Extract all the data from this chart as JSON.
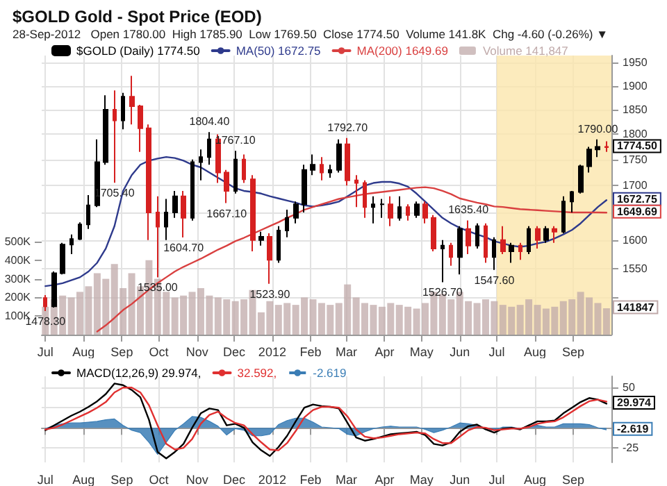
{
  "chart_data": [
    {
      "type": "candlestick",
      "title": "$GOLD Gold - Spot Price (EOD)",
      "subtitle": "28-Sep-2012   Open 1780.00  High 1785.90  Low 1769.50  Close 1774.50  Volume 141.8K  Chg -4.60 (-0.26%) ▼",
      "x": [
        "2011-07-01",
        "2011-07-08",
        "2011-07-15",
        "2011-07-22",
        "2011-07-29",
        "2011-08-05",
        "2011-08-12",
        "2011-08-19",
        "2011-08-26",
        "2011-09-02",
        "2011-09-09",
        "2011-09-16",
        "2011-09-23",
        "2011-09-30",
        "2011-10-07",
        "2011-10-14",
        "2011-10-21",
        "2011-10-28",
        "2011-11-04",
        "2011-11-11",
        "2011-11-18",
        "2011-11-25",
        "2011-12-02",
        "2011-12-09",
        "2011-12-16",
        "2011-12-23",
        "2011-12-30",
        "2012-01-06",
        "2012-01-13",
        "2012-01-20",
        "2012-01-27",
        "2012-02-03",
        "2012-02-10",
        "2012-02-17",
        "2012-02-24",
        "2012-03-02",
        "2012-03-09",
        "2012-03-16",
        "2012-03-23",
        "2012-03-30",
        "2012-04-06",
        "2012-04-13",
        "2012-04-20",
        "2012-04-27",
        "2012-05-04",
        "2012-05-11",
        "2012-05-18",
        "2012-05-25",
        "2012-06-01",
        "2012-06-08",
        "2012-06-15",
        "2012-06-22",
        "2012-06-29",
        "2012-07-06",
        "2012-07-13",
        "2012-07-20",
        "2012-07-27",
        "2012-08-03",
        "2012-08-10",
        "2012-08-17",
        "2012-08-24",
        "2012-08-31",
        "2012-09-07",
        "2012-09-14",
        "2012-09-21",
        "2012-09-28"
      ],
      "xlim": [
        "2011-06-28",
        "2012-10-02"
      ],
      "xticks": [
        {
          "value": "2011-07-01",
          "label": "Jul"
        },
        {
          "value": "2011-08-01",
          "label": "Aug"
        },
        {
          "value": "2011-09-01",
          "label": "Sep"
        },
        {
          "value": "2011-10-01",
          "label": "Oct"
        },
        {
          "value": "2011-11-01",
          "label": "Nov"
        },
        {
          "value": "2011-12-01",
          "label": "Dec"
        },
        {
          "value": "2012-01-01",
          "label": "2012"
        },
        {
          "value": "2012-02-01",
          "label": "Feb"
        },
        {
          "value": "2012-03-01",
          "label": "Mar"
        },
        {
          "value": "2012-04-01",
          "label": "Apr"
        },
        {
          "value": "2012-05-01",
          "label": "May"
        },
        {
          "value": "2012-06-01",
          "label": "Jun"
        },
        {
          "value": "2012-07-01",
          "label": "Jul"
        },
        {
          "value": "2012-08-01",
          "label": "Aug"
        },
        {
          "value": "2012-09-01",
          "label": "Sep"
        }
      ],
      "ylim": [
        1440,
        1965
      ],
      "yticks": [
        {
          "value": 1500,
          "label": null
        },
        1550,
        1600,
        {
          "value": 1650,
          "label": null
        },
        1700,
        1750,
        1800,
        1850,
        1900,
        1950
      ],
      "log": "y",
      "y2lim": [
        0,
        1500000
      ],
      "y2ticks": [
        {
          "value": 100000,
          "label": "100K"
        },
        {
          "value": 200000,
          "label": "200K"
        },
        {
          "value": 300000,
          "label": "300K"
        },
        {
          "value": 400000,
          "label": "400K"
        },
        {
          "value": 500000,
          "label": "500K"
        }
      ],
      "grid": true,
      "legend": "top left",
      "bands": [
        {
          "axis": "x",
          "from": "2012-07-01",
          "to": "2012-10-02",
          "color": "#fbe6ac"
        }
      ],
      "series": [
        {
          "name": "$GOLD (Daily) 1774.50",
          "color": "#000000",
          "colors": [
            "#d62020",
            "#000000",
            "#000000",
            "#000000",
            "#000000",
            "#000000",
            "#000000",
            "#000000",
            "#d62020",
            "#000000",
            "#d62020",
            "#d62020",
            "#d62020",
            "#d62020",
            "#000000",
            "#000000",
            "#d62020",
            "#000000",
            "#000000",
            "#000000",
            "#d62020",
            "#d62020",
            "#000000",
            "#d62020",
            "#d62020",
            "#000000",
            "#d62020",
            "#000000",
            "#000000",
            "#000000",
            "#000000",
            "#000000",
            "#d62020",
            "#000000",
            "#000000",
            "#d62020",
            "#d62020",
            "#d62020",
            "#000000",
            "#000000",
            "#d62020",
            "#000000",
            "#d62020",
            "#000000",
            "#d62020",
            "#d62020",
            "#000000",
            "#d62020",
            "#000000",
            "#d62020",
            "#000000",
            "#d62020",
            "#000000",
            "#d62020",
            "#000000",
            "#d62020",
            "#000000",
            "#d62020",
            "#000000",
            "#d62020",
            "#000000",
            "#000000",
            "#000000",
            "#000000",
            "#000000",
            "#d62020"
          ],
          "ohlc": [
            [
              1500,
              1505,
              1478.3,
              1486
            ],
            [
              1486,
              1545,
              1484,
              1542
            ],
            [
              1542,
              1595,
              1540,
              1592
            ],
            [
              1592,
              1610,
              1575,
              1602
            ],
            [
              1602,
              1632,
              1600,
              1628
            ],
            [
              1628,
              1682,
              1620,
              1663
            ],
            [
              1663,
              1790,
              1660,
              1745
            ],
            [
              1745,
              1880,
              1740,
              1850
            ],
            [
              1850,
              1890,
              1705.4,
              1828
            ],
            [
              1828,
              1885,
              1810,
              1877
            ],
            [
              1877,
              1921,
              1820,
              1857
            ],
            [
              1857,
              1860,
              1765,
              1812
            ],
            [
              1812,
              1820,
              1600,
              1650
            ],
            [
              1650,
              1680,
              1535,
              1624
            ],
            [
              1624,
              1675,
              1600,
              1650
            ],
            [
              1650,
              1690,
              1640,
              1680
            ],
            [
              1680,
              1690,
              1604.7,
              1640
            ],
            [
              1640,
              1750,
              1635,
              1745
            ],
            [
              1745,
              1770,
              1710,
              1755
            ],
            [
              1755,
              1804.4,
              1740,
              1790
            ],
            [
              1790,
              1800,
              1705,
              1725
            ],
            [
              1725,
              1730,
              1667.1,
              1690
            ],
            [
              1690,
              1767.1,
              1685,
              1750
            ],
            [
              1750,
              1760,
              1705,
              1712
            ],
            [
              1712,
              1720,
              1580,
              1600
            ],
            [
              1600,
              1615,
              1590,
              1606
            ],
            [
              1606,
              1612,
              1523.9,
              1565
            ],
            [
              1565,
              1625,
              1560,
              1617
            ],
            [
              1617,
              1655,
              1605,
              1640
            ],
            [
              1640,
              1670,
              1630,
              1665
            ],
            [
              1665,
              1740,
              1650,
              1730
            ],
            [
              1730,
              1760,
              1720,
              1740
            ],
            [
              1740,
              1755,
              1710,
              1725
            ],
            [
              1725,
              1740,
              1715,
              1730
            ],
            [
              1730,
              1790,
              1725,
              1780
            ],
            [
              1780,
              1792.7,
              1700,
              1710
            ],
            [
              1710,
              1720,
              1660,
              1705
            ],
            [
              1705,
              1710,
              1640,
              1660
            ],
            [
              1660,
              1680,
              1630,
              1665
            ],
            [
              1665,
              1675,
              1640,
              1665
            ],
            [
              1665,
              1680,
              1625,
              1640
            ],
            [
              1640,
              1680,
              1635,
              1660
            ],
            [
              1660,
              1665,
              1635,
              1645
            ],
            [
              1645,
              1670,
              1640,
              1665
            ],
            [
              1665,
              1670,
              1630,
              1640
            ],
            [
              1640,
              1645,
              1580,
              1585
            ],
            [
              1585,
              1600,
              1526.7,
              1590
            ],
            [
              1590,
              1595,
              1555,
              1570
            ],
            [
              1570,
              1625,
              1540,
              1620
            ],
            [
              1620,
              1635.4,
              1575,
              1590
            ],
            [
              1590,
              1630,
              1585,
              1625
            ],
            [
              1625,
              1630,
              1560,
              1570
            ],
            [
              1570,
              1605,
              1547.6,
              1600
            ],
            [
              1600,
              1625,
              1575,
              1580
            ],
            [
              1580,
              1595,
              1560,
              1590
            ],
            [
              1590,
              1595,
              1565,
              1580
            ],
            [
              1580,
              1625,
              1575,
              1620
            ],
            [
              1620,
              1625,
              1585,
              1600
            ],
            [
              1600,
              1625,
              1595,
              1620
            ],
            [
              1620,
              1625,
              1595,
              1615
            ],
            [
              1615,
              1680,
              1612,
              1670
            ],
            [
              1670,
              1690,
              1650,
              1688
            ],
            [
              1688,
              1740,
              1685,
              1737
            ],
            [
              1737,
              1775,
              1725,
              1770
            ],
            [
              1770,
              1790,
              1755,
              1775
            ],
            [
              1775,
              1785.9,
              1765,
              1774.5
            ]
          ]
        },
        {
          "type": "line",
          "name": "MA(50) 1672.75",
          "color": "#2e3a8c",
          "values": [
            1520,
            1522,
            1525,
            1530,
            1535,
            1545,
            1560,
            1585,
            1625,
            1690,
            1720,
            1740,
            1748,
            1752,
            1755,
            1753,
            1748,
            1740,
            1735,
            1725,
            1715,
            1705,
            1695,
            1690,
            1688,
            1685,
            1680,
            1676,
            1672,
            1668,
            1663,
            1661,
            1663,
            1666,
            1670,
            1680,
            1690,
            1700,
            1705,
            1707,
            1707,
            1704,
            1698,
            1685,
            1670,
            1655,
            1640,
            1630,
            1622,
            1616,
            1610,
            1605,
            1598,
            1594,
            1590,
            1588,
            1590,
            1594,
            1597,
            1603,
            1610,
            1618,
            1630,
            1645,
            1660,
            1672.75
          ]
        },
        {
          "type": "line",
          "name": "MA(200) 1649.69",
          "color": "#d94040",
          "values": [
            null,
            null,
            null,
            null,
            null,
            null,
            1445,
            1455,
            1467,
            1480,
            1490,
            1502,
            1514,
            1525,
            1535,
            1545,
            1553,
            1560,
            1567,
            1575,
            1583,
            1590,
            1598,
            1604,
            1611,
            1618,
            1625,
            1632,
            1640,
            1647,
            1655,
            1660,
            1665,
            1670,
            1675,
            1678,
            1681,
            1684,
            1686,
            1688,
            1690,
            1692,
            1694,
            1696,
            1697,
            1695,
            1690,
            1684,
            1676,
            1672,
            1668,
            1665,
            1661,
            1660,
            1658,
            1656,
            1655,
            1654,
            1653,
            1652,
            1651,
            1650,
            1650,
            1650,
            1650,
            1649.69
          ]
        },
        {
          "type": "bar",
          "name": "Volume 141,847",
          "axis": "y2",
          "color": "#c0aaaa",
          "values": [
            150000,
            190000,
            210000,
            200000,
            230000,
            260000,
            330000,
            300000,
            380000,
            250000,
            330000,
            260000,
            400000,
            300000,
            230000,
            200000,
            210000,
            230000,
            250000,
            210000,
            200000,
            190000,
            180000,
            190000,
            240000,
            120000,
            180000,
            160000,
            170000,
            160000,
            200000,
            190000,
            170000,
            160000,
            170000,
            270000,
            200000,
            170000,
            160000,
            150000,
            170000,
            160000,
            150000,
            140000,
            170000,
            230000,
            220000,
            190000,
            230000,
            180000,
            170000,
            190000,
            180000,
            160000,
            150000,
            160000,
            190000,
            160000,
            140000,
            150000,
            180000,
            190000,
            230000,
            200000,
            170000,
            141847
          ]
        }
      ],
      "annotations": [
        {
          "text": "1478.30",
          "x": "2011-07-01",
          "y": 1478.3
        },
        {
          "text": "1705.40",
          "x": "2011-08-26",
          "y": 1705.4
        },
        {
          "text": "1535.00",
          "x": "2011-09-30",
          "y": 1535
        },
        {
          "text": "1604.70",
          "x": "2011-10-21",
          "y": 1604.7
        },
        {
          "text": "1804.40",
          "x": "2011-11-11",
          "y": 1804.4
        },
        {
          "text": "1667.10",
          "x": "2011-11-25",
          "y": 1667.1
        },
        {
          "text": "1767.10",
          "x": "2011-12-02",
          "y": 1767.1
        },
        {
          "text": "1523.90",
          "x": "2011-12-30",
          "y": 1523.9
        },
        {
          "text": "1792.70",
          "x": "2012-03-02",
          "y": 1792.7
        },
        {
          "text": "1526.70",
          "x": "2012-05-18",
          "y": 1526.7
        },
        {
          "text": "1635.40",
          "x": "2012-06-08",
          "y": 1635.4
        },
        {
          "text": "1547.60",
          "x": "2012-06-29",
          "y": 1547.6
        },
        {
          "text": "1790.00",
          "x": "2012-09-21",
          "y": 1790
        },
        {
          "text": "1774.50",
          "x": "2012-09-28",
          "y": 1774.5
        },
        {
          "text": "1672.75",
          "x": "2012-09-28",
          "y": 1672.75
        },
        {
          "text": "1649.69",
          "x": "2012-09-28",
          "y": 1649.69
        },
        "141847"
      ]
    },
    {
      "type": "line",
      "x": [
        "2011-07-01",
        "2011-07-08",
        "2011-07-15",
        "2011-07-22",
        "2011-07-29",
        "2011-08-05",
        "2011-08-12",
        "2011-08-19",
        "2011-08-26",
        "2011-09-02",
        "2011-09-09",
        "2011-09-16",
        "2011-09-23",
        "2011-09-30",
        "2011-10-07",
        "2011-10-14",
        "2011-10-21",
        "2011-10-28",
        "2011-11-04",
        "2011-11-11",
        "2011-11-18",
        "2011-11-25",
        "2011-12-02",
        "2011-12-09",
        "2011-12-16",
        "2011-12-23",
        "2011-12-30",
        "2012-01-06",
        "2012-01-13",
        "2012-01-20",
        "2012-01-27",
        "2012-02-03",
        "2012-02-10",
        "2012-02-17",
        "2012-02-24",
        "2012-03-02",
        "2012-03-09",
        "2012-03-16",
        "2012-03-23",
        "2012-03-30",
        "2012-04-06",
        "2012-04-13",
        "2012-04-20",
        "2012-04-27",
        "2012-05-04",
        "2012-05-11",
        "2012-05-18",
        "2012-05-25",
        "2012-06-01",
        "2012-06-08",
        "2012-06-15",
        "2012-06-22",
        "2012-06-29",
        "2012-07-06",
        "2012-07-13",
        "2012-07-20",
        "2012-07-27",
        "2012-08-03",
        "2012-08-10",
        "2012-08-17",
        "2012-08-24",
        "2012-08-31",
        "2012-09-07",
        "2012-09-14",
        "2012-09-21",
        "2012-09-28"
      ],
      "xlim": [
        "2011-06-28",
        "2012-10-02"
      ],
      "xticks": [
        {
          "value": "2011-07-01",
          "label": "Jul"
        },
        {
          "value": "2011-08-01",
          "label": "Aug"
        },
        {
          "value": "2011-09-01",
          "label": "Sep"
        },
        {
          "value": "2011-10-01",
          "label": "Oct"
        },
        {
          "value": "2011-11-01",
          "label": "Nov"
        },
        {
          "value": "2011-12-01",
          "label": "Dec"
        },
        {
          "value": "2012-01-01",
          "label": "2012"
        },
        {
          "value": "2012-02-01",
          "label": "Feb"
        },
        {
          "value": "2012-03-01",
          "label": "Mar"
        },
        {
          "value": "2012-04-01",
          "label": "Apr"
        },
        {
          "value": "2012-05-01",
          "label": "May"
        },
        {
          "value": "2012-06-01",
          "label": "Jun"
        },
        {
          "value": "2012-07-01",
          "label": "Jul"
        },
        {
          "value": "2012-08-01",
          "label": "Aug"
        },
        {
          "value": "2012-09-01",
          "label": "Sep"
        }
      ],
      "ylim": [
        -43,
        64
      ],
      "yticks": [
        -25,
        {
          "value": 0,
          "label": null
        },
        {
          "value": 25,
          "label": null
        },
        50
      ],
      "grid": true,
      "legend": "top left",
      "series": [
        {
          "name": "MACD(12,26,9) 29.974,",
          "color": "#000000",
          "values": [
            -3,
            3,
            9,
            15,
            20,
            26,
            33,
            42,
            55,
            53,
            47,
            38,
            10,
            -30,
            -38,
            -30,
            -20,
            0,
            18,
            24,
            22,
            3,
            5,
            0,
            -18,
            -28,
            -35,
            -24,
            -10,
            8,
            25,
            29,
            27,
            26,
            24,
            6,
            -12,
            -16,
            -14,
            -11,
            -8,
            -7,
            -6,
            -5,
            -9,
            -20,
            -22,
            -18,
            -5,
            2,
            4,
            -2,
            -6,
            -1,
            0,
            -2,
            3,
            8,
            8,
            9,
            18,
            25,
            32,
            37,
            35,
            29.974
          ]
        },
        {
          "name": "32.592,",
          "color": "#e03030",
          "values": [
            -2,
            0,
            4,
            9,
            14,
            19,
            25,
            32,
            44,
            50,
            50,
            44,
            28,
            3,
            -20,
            -27,
            -25,
            -14,
            5,
            16,
            20,
            12,
            6,
            3,
            -8,
            -18,
            -27,
            -28,
            -19,
            -4,
            13,
            22,
            26,
            26,
            25,
            14,
            -2,
            -11,
            -13,
            -12,
            -10,
            -8,
            -7,
            -6,
            -7,
            -14,
            -19,
            -19,
            -11,
            -3,
            1,
            0,
            -3,
            -2,
            -1,
            -1,
            1,
            5,
            7,
            8,
            13,
            20,
            27,
            33,
            35,
            32.592
          ]
        },
        {
          "name": "-2.619",
          "type": "area",
          "color": "#3a7db5",
          "values": [
            -1,
            3,
            5,
            6,
            6,
            7,
            8,
            10,
            11,
            3,
            -3,
            -6,
            -18,
            -33,
            -18,
            -3,
            5,
            14,
            13,
            8,
            2,
            -9,
            -1,
            -3,
            -10,
            -10,
            -8,
            4,
            9,
            12,
            12,
            7,
            1,
            0,
            -1,
            -8,
            -10,
            -5,
            -1,
            1,
            2,
            1,
            1,
            1,
            -2,
            -6,
            -3,
            1,
            6,
            5,
            3,
            -2,
            -3,
            1,
            1,
            -1,
            2,
            3,
            1,
            1,
            5,
            5,
            5,
            4,
            0,
            -2.619
          ]
        }
      ],
      "annotations": [
        {
          "text": "29.974",
          "x": "2012-09-28",
          "y": 29.974
        },
        {
          "text": "-2.619",
          "x": "2012-09-28",
          "y": -2.619
        }
      ]
    }
  ]
}
